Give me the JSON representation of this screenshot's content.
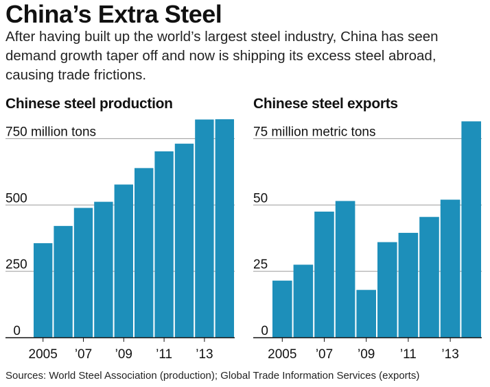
{
  "headline": "China’s Extra Steel",
  "dek": "After having built up the world’s largest steel industry, China has seen demand growth taper off and now is shipping its excess steel abroad, causing trade frictions.",
  "source": "Sources: World Steel Association (production); Global Trade Information Services (exports)",
  "colors": {
    "bar": "#1d8fba",
    "gridline": "#9a9a9a",
    "axis": "#111111",
    "text": "#111111"
  },
  "chart_data": [
    {
      "type": "bar",
      "title": "Chinese steel production",
      "unit_label": "750 million tons",
      "categories": [
        "2005",
        "2006",
        "2007",
        "2008",
        "2009",
        "2010",
        "2011",
        "2012",
        "2013",
        "2014"
      ],
      "x_tick_labels": [
        "2005",
        "’07",
        "’09",
        "’11",
        "’13"
      ],
      "values": [
        356,
        421,
        489,
        512,
        577,
        639,
        702,
        731,
        822,
        823
      ],
      "ylim": [
        0,
        800
      ],
      "y_ticks": [
        0,
        250,
        500,
        750
      ],
      "y_tick_labels": [
        "0",
        "250",
        "500",
        "750 million tons"
      ],
      "grid": true
    },
    {
      "type": "bar",
      "title": "Chinese steel exports",
      "unit_label": "75 million metric tons",
      "categories": [
        "2005",
        "2006",
        "2007",
        "2008",
        "2009",
        "2010",
        "2011",
        "2012",
        "2013",
        "2014"
      ],
      "x_tick_labels": [
        "2005",
        "’07",
        "’09",
        "’11",
        "’13"
      ],
      "values": [
        21.5,
        27.5,
        47.5,
        51.5,
        18,
        36,
        39.5,
        45.5,
        52,
        81.5
      ],
      "ylim": [
        0,
        80
      ],
      "y_ticks": [
        0,
        25,
        50,
        75
      ],
      "y_tick_labels": [
        "0",
        "25",
        "50",
        "75 million metric tons"
      ],
      "grid": true
    }
  ]
}
